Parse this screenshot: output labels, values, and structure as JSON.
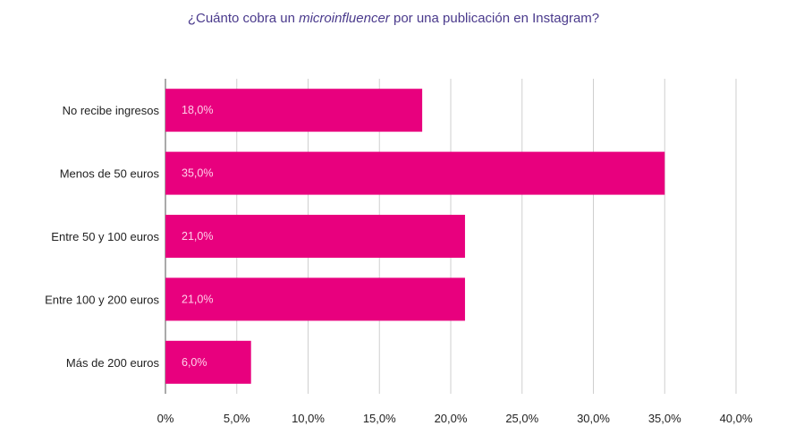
{
  "chart_data": {
    "type": "bar",
    "orientation": "horizontal",
    "title": {
      "before": "¿Cuánto cobra un ",
      "italic": "microinfluencer",
      "after": " por una publicación en Instagram?"
    },
    "categories": [
      "No recibe ingresos",
      "Menos de 50 euros",
      "Entre 50 y 100 euros",
      "Entre 100 y 200 euros",
      "Más de 200 euros"
    ],
    "values": [
      18.0,
      35.0,
      21.0,
      21.0,
      6.0
    ],
    "data_labels": [
      "18,0%",
      "35,0%",
      "21,0%",
      "21,0%",
      "6,0%"
    ],
    "xlim": [
      0,
      40
    ],
    "x_ticks": [
      0,
      5,
      10,
      15,
      20,
      25,
      30,
      35,
      40
    ],
    "x_tick_labels": [
      "0%",
      "5,0%",
      "10,0%",
      "15,0%",
      "20,0%",
      "25,0%",
      "30,0%",
      "35,0%",
      "40,0%"
    ],
    "grid": "vertical",
    "colors": {
      "bar": "#e8007e",
      "title": "#4a3a8c",
      "grid": "#cfcfcf"
    }
  }
}
